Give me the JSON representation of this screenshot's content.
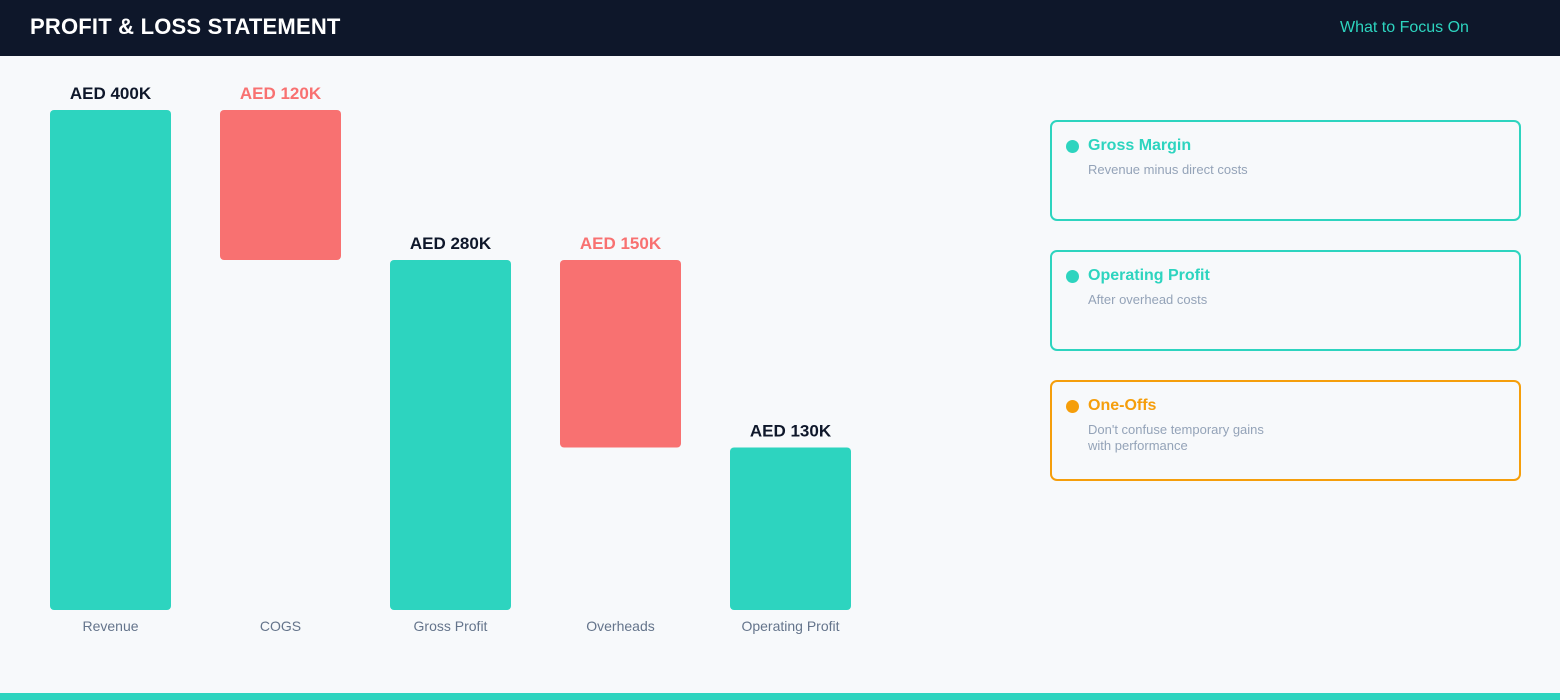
{
  "header": {
    "title": "PROFIT & LOSS STATEMENT",
    "link_label": "What to Focus On"
  },
  "colors": {
    "positive": "#2dd4bf",
    "negative": "#f87171",
    "highlight": "#f59e0b",
    "header_bg": "#0e172a",
    "value_label_positive": "#0e172a",
    "category_label": "#64748b"
  },
  "chart_data": {
    "type": "waterfall",
    "unit": "AED",
    "categories": [
      "Revenue",
      "COGS",
      "Gross Profit",
      "Overheads",
      "Operating Profit"
    ],
    "values": [
      400,
      -120,
      280,
      -150,
      130
    ],
    "kinds": [
      "total",
      "decrease",
      "total",
      "decrease",
      "total"
    ],
    "value_labels": [
      "AED 400K",
      "AED 120K",
      "AED 280K",
      "AED 150K",
      "AED 130K"
    ],
    "ylim": [
      0,
      400
    ],
    "grid": false,
    "legend": "none"
  },
  "focus_cards": [
    {
      "title": "Gross Margin",
      "description": "Revenue minus direct costs",
      "color": "#2dd4bf"
    },
    {
      "title": "Operating Profit",
      "description": "After overhead costs",
      "color": "#2dd4bf"
    },
    {
      "title": "One-Offs",
      "description": "Don't confuse temporary gains with performance",
      "color": "#f59e0b"
    }
  ]
}
